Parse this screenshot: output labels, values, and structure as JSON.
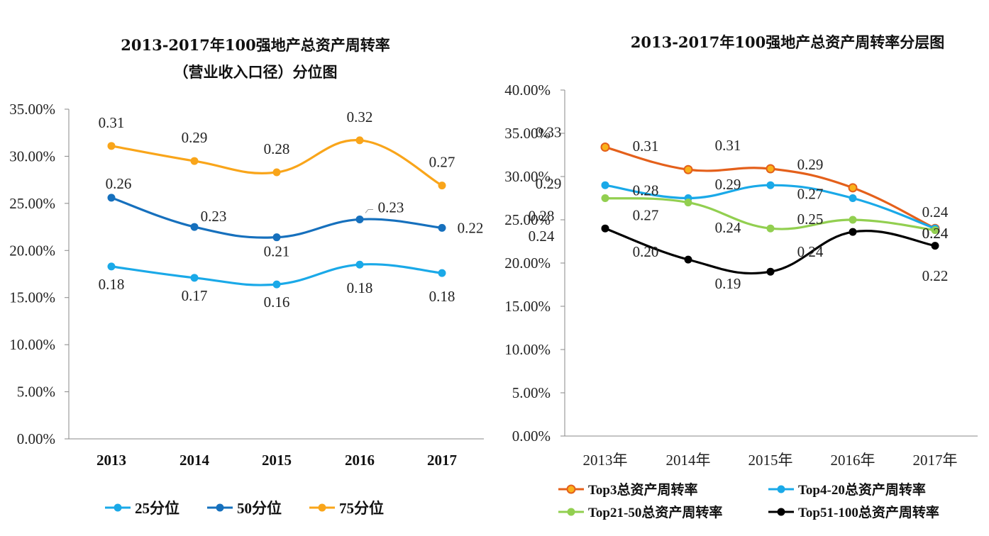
{
  "chart_data": [
    {
      "type": "line",
      "title": "2013-2017年100强地产总资产周转率",
      "subtitle": "（营业收入口径）分位图",
      "categories": [
        "2013",
        "2014",
        "2015",
        "2016",
        "2017"
      ],
      "ylim": [
        0,
        0.35
      ],
      "yticks": [
        "0.00%",
        "5.00%",
        "10.00%",
        "15.00%",
        "20.00%",
        "25.00%",
        "30.00%",
        "35.00%"
      ],
      "grid": false,
      "legend": "bottom",
      "series": [
        {
          "name": "25分位",
          "color": "#1aa9e8",
          "values": [
            0.183,
            0.171,
            0.164,
            0.185,
            0.176
          ],
          "labels": [
            "0.18",
            "0.17",
            "0.16",
            "0.18",
            "0.18"
          ]
        },
        {
          "name": "50分位",
          "color": "#1670bd",
          "values": [
            0.256,
            0.225,
            0.214,
            0.233,
            0.224
          ],
          "labels": [
            "0.26",
            "0.23",
            "0.21",
            "0.23",
            "0.22"
          ]
        },
        {
          "name": "75分位",
          "color": "#f9a51a",
          "values": [
            0.311,
            0.295,
            0.283,
            0.317,
            0.269
          ],
          "labels": [
            "0.31",
            "0.29",
            "0.28",
            "0.32",
            "0.27"
          ]
        }
      ]
    },
    {
      "type": "line",
      "title": "2013-2017年100强地产总资产周转率分层图",
      "categories": [
        "2013年",
        "2014年",
        "2015年",
        "2016年",
        "2017年"
      ],
      "ylim": [
        0,
        0.4
      ],
      "yticks": [
        "0.00%",
        "5.00%",
        "10.00%",
        "15.00%",
        "20.00%",
        "25.00%",
        "30.00%",
        "35.00%",
        "40.00%"
      ],
      "grid": false,
      "legend": "bottom",
      "series": [
        {
          "name": "Top3总资产周转率",
          "color": "#e4601b",
          "marker_fill": "#f9b21a",
          "values": [
            0.334,
            0.308,
            0.309,
            0.287,
            0.24
          ],
          "labels": [
            "0.33",
            "0.31",
            "0.31",
            "0.29",
            "0.24"
          ]
        },
        {
          "name": "Top4-20总资产周转率",
          "color": "#1aa9e8",
          "values": [
            0.29,
            0.275,
            0.29,
            0.275,
            0.24
          ],
          "labels": [
            "0.29",
            "0.28",
            "0.29",
            "0.27",
            "0.24"
          ]
        },
        {
          "name": "Top21-50总资产周转率",
          "color": "#92cf50",
          "values": [
            0.275,
            0.27,
            0.24,
            0.25,
            0.238
          ],
          "labels": [
            "0.28",
            "0.27",
            "0.24",
            "0.25",
            "0.24"
          ]
        },
        {
          "name": "Top51-100总资产周转率",
          "color": "#000000",
          "values": [
            0.24,
            0.204,
            0.19,
            0.236,
            0.22
          ],
          "labels": [
            "0.24",
            "0.20",
            "0.19",
            "0.24",
            "0.22"
          ]
        }
      ]
    }
  ]
}
